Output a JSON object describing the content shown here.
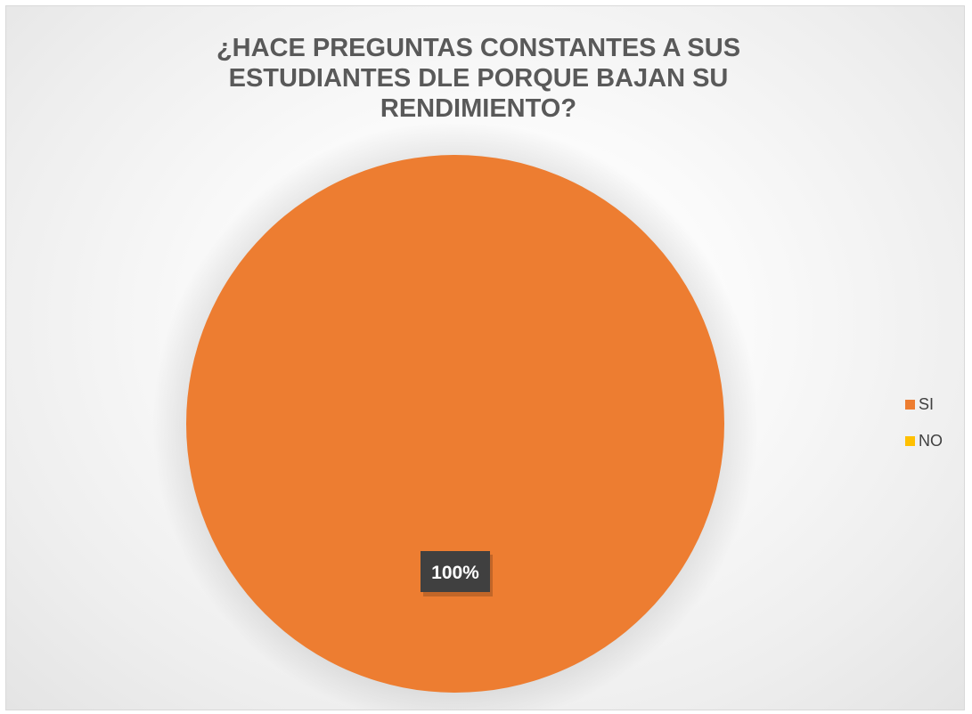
{
  "chart_data": {
    "type": "pie",
    "title": "¿HACE PREGUNTAS CONSTANTES A SUS ESTUDIANTES DLE PORQUE BAJAN SU RENDIMIENTO?",
    "categories": [
      "SI",
      "NO"
    ],
    "values": [
      100,
      0
    ],
    "data_labels": [
      "100%",
      ""
    ],
    "colors": [
      "#ED7D31",
      "#FFC000"
    ],
    "legend_position": "right"
  }
}
